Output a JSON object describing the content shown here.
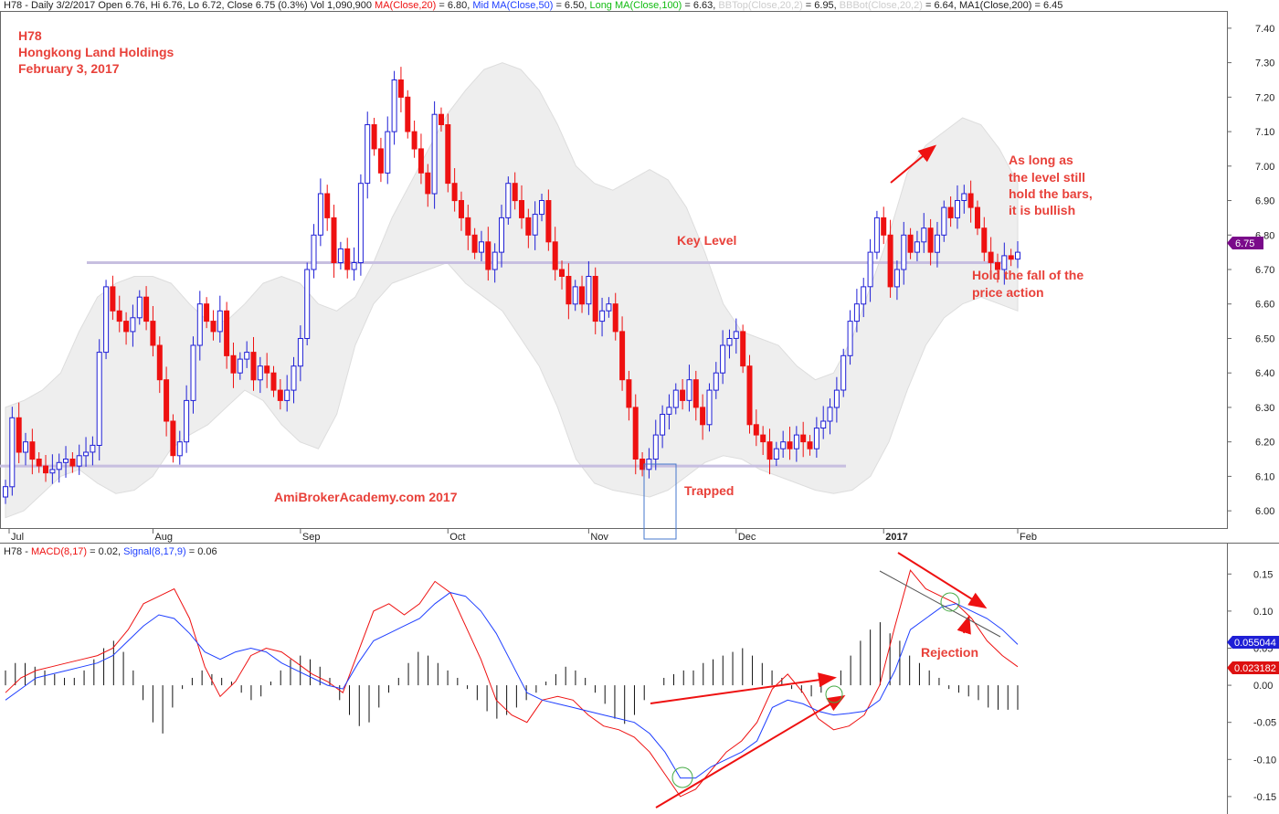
{
  "colors": {
    "up": "#1f1fd6",
    "down": "#ee1111",
    "band": "#eeeeee",
    "keyline": "#c7bfe0",
    "macd": "#ee1111",
    "signal": "#1f3fff",
    "hist": "#111111",
    "accent": "#e8413a",
    "price_tag": "#7a0a8a",
    "signal_tag": "#1f1fd6",
    "macd_tag": "#dd1111"
  },
  "header": {
    "price": [
      {
        "text": "H78 - Daily 3/2/2017 Open 6.76, Hi 6.76, Lo 6.72, Close 6.75 (0.3%) Vol 1,090,900 ",
        "color": "#222222"
      },
      {
        "text": "MA(Close,20)",
        "color": "#ee1111"
      },
      {
        "text": " = 6.80, ",
        "color": "#222222"
      },
      {
        "text": "Mid MA(Close,50)",
        "color": "#1f3fff"
      },
      {
        "text": " = 6.50, ",
        "color": "#222222"
      },
      {
        "text": "Long MA(Close,100)",
        "color": "#11bb11"
      },
      {
        "text": " = 6.63, ",
        "color": "#222222"
      },
      {
        "text": "BBTop(Close,20,2)",
        "color": "#cccccc"
      },
      {
        "text": " = 6.95, ",
        "color": "#222222"
      },
      {
        "text": "BBBot(Close,20,2)",
        "color": "#cccccc"
      },
      {
        "text": " = 6.64, MA1(Close,200) = 6.45",
        "color": "#222222"
      }
    ],
    "macd": [
      {
        "text": "H78 - ",
        "color": "#222222"
      },
      {
        "text": "MACD(8,17)",
        "color": "#ee1111"
      },
      {
        "text": " = 0.02, ",
        "color": "#222222"
      },
      {
        "text": "Signal(8,17,9)",
        "color": "#1f3fff"
      },
      {
        "text": " = 0.06",
        "color": "#222222"
      }
    ]
  },
  "titles": [
    "H78",
    "Hongkong Land Holdings",
    "February 3, 2017"
  ],
  "annotations": {
    "key_level": "Key Level",
    "trapped": "Trapped",
    "watermark": "AmiBrokerAcademy.com   2017",
    "bullish": [
      "As long as",
      "the level still",
      "hold the bars,",
      "it is bullish"
    ],
    "hold": [
      "Hold the fall of the",
      "price action"
    ],
    "rejection": "Rejection"
  },
  "tags": {
    "price": "6.75",
    "signal": "0.055044",
    "macd": "0.023182"
  },
  "chart_data": [
    {
      "type": "candlestick",
      "name": "H78",
      "ylim": [
        5.95,
        7.45
      ],
      "yticks": [
        "6.00",
        "6.10",
        "6.20",
        "6.30",
        "6.40",
        "6.50",
        "6.60",
        "6.70",
        "6.80",
        "6.90",
        "7.00",
        "7.10",
        "7.20",
        "7.30",
        "7.40"
      ],
      "months": [
        {
          "label": "Jul",
          "bar": 0
        },
        {
          "label": "Aug",
          "bar": 22
        },
        {
          "label": "Sep",
          "bar": 44
        },
        {
          "label": "Oct",
          "bar": 66
        },
        {
          "label": "Nov",
          "bar": 87
        },
        {
          "label": "Dec",
          "bar": 109
        },
        {
          "label": "2017",
          "bar": 131
        },
        {
          "label": "Feb",
          "bar": 151
        }
      ],
      "key_levels": [
        6.72,
        6.13
      ],
      "closes": [
        6.07,
        6.27,
        6.17,
        6.2,
        6.15,
        6.13,
        6.11,
        6.12,
        6.14,
        6.15,
        6.13,
        6.16,
        6.17,
        6.19,
        6.46,
        6.65,
        6.58,
        6.55,
        6.52,
        6.56,
        6.62,
        6.55,
        6.48,
        6.38,
        6.26,
        6.16,
        6.2,
        6.32,
        6.48,
        6.6,
        6.55,
        6.52,
        6.58,
        6.45,
        6.4,
        6.44,
        6.46,
        6.38,
        6.42,
        6.4,
        6.35,
        6.32,
        6.35,
        6.42,
        6.5,
        6.7,
        6.8,
        6.92,
        6.85,
        6.72,
        6.76,
        6.7,
        6.72,
        6.95,
        7.12,
        7.05,
        6.98,
        7.1,
        7.25,
        7.2,
        7.1,
        7.05,
        6.98,
        6.92,
        7.15,
        7.12,
        6.95,
        6.9,
        6.85,
        6.8,
        6.75,
        6.78,
        6.7,
        6.75,
        6.85,
        6.95,
        6.9,
        6.85,
        6.8,
        6.86,
        6.9,
        6.78,
        6.7,
        6.68,
        6.6,
        6.65,
        6.6,
        6.68,
        6.55,
        6.58,
        6.6,
        6.52,
        6.38,
        6.3,
        6.15,
        6.12,
        6.15,
        6.22,
        6.28,
        6.3,
        6.35,
        6.32,
        6.38,
        6.3,
        6.25,
        6.35,
        6.4,
        6.48,
        6.5,
        6.52,
        6.42,
        6.25,
        6.22,
        6.2,
        6.15,
        6.18,
        6.2,
        6.18,
        6.22,
        6.2,
        6.18,
        6.24,
        6.26,
        6.3,
        6.35,
        6.45,
        6.55,
        6.6,
        6.65,
        6.75,
        6.85,
        6.8,
        6.65,
        6.7,
        6.8,
        6.75,
        6.78,
        6.82,
        6.75,
        6.8,
        6.88,
        6.85,
        6.9,
        6.92,
        6.88,
        6.82,
        6.75,
        6.72,
        6.7,
        6.74,
        6.73,
        6.75
      ],
      "volatility_band": {
        "upper": [
          6.3,
          6.32,
          6.35,
          6.4,
          6.52,
          6.62,
          6.66,
          6.68,
          6.68,
          6.66,
          6.6,
          6.55,
          6.55,
          6.6,
          6.66,
          6.68,
          6.66,
          6.6,
          6.58,
          6.62,
          6.72,
          6.85,
          6.95,
          7.05,
          7.15,
          7.22,
          7.28,
          7.3,
          7.28,
          7.22,
          7.12,
          7.0,
          6.95,
          6.93,
          6.96,
          6.99,
          6.96,
          6.88,
          6.75,
          6.6,
          6.52,
          6.5,
          6.48,
          6.42,
          6.38,
          6.4,
          6.5,
          6.65,
          6.8,
          6.98,
          7.06,
          7.1,
          7.14,
          7.12,
          7.05,
          6.95
        ],
        "lower": [
          5.98,
          6.0,
          6.05,
          6.1,
          6.12,
          6.08,
          6.05,
          6.06,
          6.1,
          6.18,
          6.22,
          6.25,
          6.3,
          6.35,
          6.32,
          6.25,
          6.2,
          6.18,
          6.28,
          6.48,
          6.6,
          6.66,
          6.68,
          6.7,
          6.72,
          6.66,
          6.62,
          6.58,
          6.5,
          6.42,
          6.3,
          6.15,
          6.08,
          6.06,
          6.05,
          6.04,
          6.06,
          6.1,
          6.14,
          6.16,
          6.15,
          6.12,
          6.1,
          6.08,
          6.06,
          6.05,
          6.06,
          6.1,
          6.2,
          6.35,
          6.48,
          6.56,
          6.6,
          6.62,
          6.6,
          6.58
        ]
      }
    },
    {
      "type": "line",
      "name": "MACD",
      "ylim": [
        -0.16,
        0.175
      ],
      "yticks": [
        "0.15",
        "0.10",
        "0.05",
        "0.00",
        "-0.05",
        "-0.10",
        "-0.15"
      ],
      "series": [
        {
          "name": "MACD(8,17)",
          "values": [
            -0.01,
            0.01,
            0.02,
            0.025,
            0.03,
            0.035,
            0.04,
            0.05,
            0.075,
            0.11,
            0.12,
            0.13,
            0.09,
            0.025,
            -0.015,
            0.005,
            0.04,
            0.05,
            0.045,
            0.03,
            0.015,
            0.005,
            -0.01,
            0.045,
            0.1,
            0.11,
            0.095,
            0.11,
            0.14,
            0.125,
            0.08,
            0.035,
            -0.02,
            -0.04,
            -0.05,
            -0.02,
            -0.015,
            -0.02,
            -0.04,
            -0.055,
            -0.06,
            -0.07,
            -0.09,
            -0.12,
            -0.15,
            -0.14,
            -0.115,
            -0.09,
            -0.075,
            -0.05,
            -0.005,
            0.015,
            -0.01,
            -0.045,
            -0.06,
            -0.055,
            -0.04,
            0.0,
            0.08,
            0.155,
            0.13,
            0.12,
            0.11,
            0.09,
            0.06,
            0.04,
            0.025
          ]
        },
        {
          "name": "Signal(8,17,9)",
          "values": [
            -0.02,
            -0.005,
            0.01,
            0.015,
            0.02,
            0.025,
            0.03,
            0.04,
            0.06,
            0.08,
            0.095,
            0.09,
            0.07,
            0.045,
            0.035,
            0.045,
            0.05,
            0.045,
            0.03,
            0.02,
            0.01,
            0.0,
            -0.005,
            0.03,
            0.06,
            0.07,
            0.08,
            0.09,
            0.11,
            0.125,
            0.12,
            0.1,
            0.07,
            0.03,
            -0.01,
            -0.02,
            -0.025,
            -0.03,
            -0.035,
            -0.04,
            -0.045,
            -0.05,
            -0.065,
            -0.09,
            -0.125,
            -0.125,
            -0.11,
            -0.1,
            -0.09,
            -0.075,
            -0.03,
            -0.02,
            -0.025,
            -0.035,
            -0.04,
            -0.038,
            -0.035,
            -0.02,
            0.02,
            0.075,
            0.09,
            0.105,
            0.11,
            0.1,
            0.09,
            0.075,
            0.055
          ]
        }
      ],
      "histogram": [
        0.02,
        0.03,
        0.03,
        0.025,
        0.02,
        0.015,
        0.01,
        0.01,
        0.02,
        0.035,
        0.05,
        0.06,
        0.045,
        0.02,
        -0.02,
        -0.05,
        -0.065,
        -0.03,
        -0.005,
        0.01,
        0.02,
        0.015,
        0.01,
        0.005,
        -0.01,
        -0.02,
        -0.015,
        0.005,
        0.02,
        0.035,
        0.04,
        0.035,
        0.025,
        0.01,
        -0.02,
        -0.04,
        -0.055,
        -0.05,
        -0.03,
        -0.01,
        0.01,
        0.03,
        0.045,
        0.04,
        0.03,
        0.02,
        0.01,
        -0.005,
        -0.02,
        -0.035,
        -0.045,
        -0.04,
        -0.03,
        -0.02,
        -0.01,
        0.005,
        0.015,
        0.025,
        0.02,
        0.01,
        -0.01,
        -0.025,
        -0.045,
        -0.052,
        -0.04,
        -0.02,
        0.0,
        0.01,
        0.015,
        0.02,
        0.02,
        0.03,
        0.035,
        0.04,
        0.045,
        0.05,
        0.04,
        0.03,
        0.02,
        0.01,
        -0.005,
        -0.01,
        -0.015,
        -0.01,
        0.0,
        0.02,
        0.04,
        0.06,
        0.075,
        0.085,
        0.07,
        0.06,
        0.04,
        0.03,
        0.02,
        0.01,
        -0.005,
        -0.01,
        -0.015,
        -0.02,
        -0.03,
        -0.033,
        -0.033,
        -0.033
      ]
    }
  ]
}
